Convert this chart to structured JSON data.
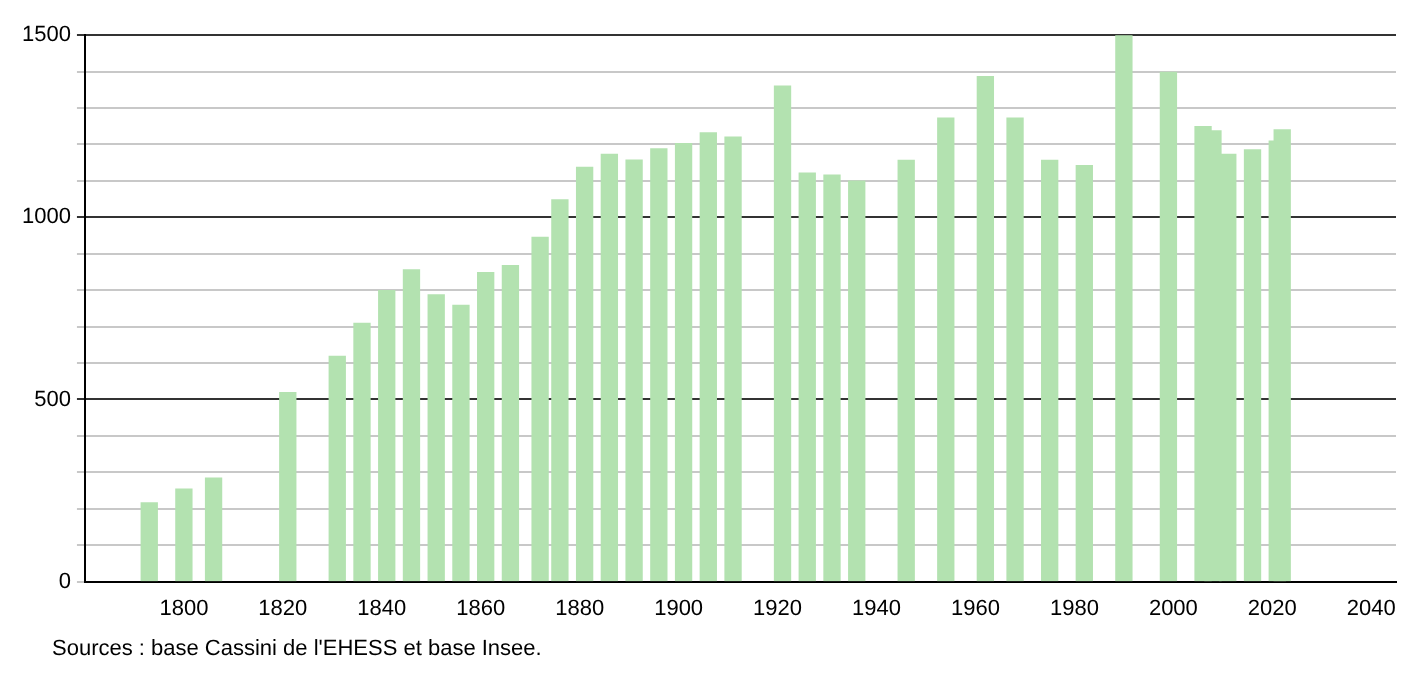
{
  "chart_data": {
    "type": "bar",
    "color": "#b3e2b0",
    "x": [
      1793,
      1800,
      1806,
      1821,
      1831,
      1836,
      1841,
      1846,
      1851,
      1856,
      1861,
      1866,
      1872,
      1876,
      1881,
      1886,
      1891,
      1896,
      1901,
      1906,
      1911,
      1921,
      1926,
      1931,
      1936,
      1946,
      1954,
      1962,
      1968,
      1975,
      1982,
      1990,
      1999,
      2006,
      2008,
      2011,
      2016,
      2021,
      2022
    ],
    "values": [
      216,
      254,
      284,
      519,
      618,
      709,
      799,
      856,
      787,
      758,
      848,
      867,
      945,
      1048,
      1137,
      1173,
      1157,
      1188,
      1202,
      1232,
      1220,
      1360,
      1121,
      1116,
      1099,
      1156,
      1272,
      1386,
      1272,
      1156,
      1142,
      1500,
      1398,
      1249,
      1237,
      1173,
      1185,
      1209,
      1240
    ],
    "xlim": [
      1780,
      2045
    ],
    "xticks": [
      1800,
      1820,
      1840,
      1860,
      1880,
      1900,
      1920,
      1940,
      1960,
      1980,
      2000,
      2020,
      2040
    ],
    "ylim": [
      0,
      1500
    ],
    "yticks": [
      0,
      {
        "value": 100,
        "label": null
      },
      {
        "value": 200,
        "label": null
      },
      {
        "value": 300,
        "label": null
      },
      {
        "value": 400,
        "label": null
      },
      500,
      {
        "value": 600,
        "label": null
      },
      {
        "value": 700,
        "label": null
      },
      {
        "value": 800,
        "label": null
      },
      {
        "value": 900,
        "label": null
      },
      1000,
      {
        "value": 1100,
        "label": null
      },
      {
        "value": 1200,
        "label": null
      },
      {
        "value": 1300,
        "label": null
      },
      {
        "value": 1400,
        "label": null
      },
      1500
    ],
    "grid": "y",
    "legend": false,
    "annotations": [
      "Sources : base Cassini de l'EHESS et base Insee."
    ]
  }
}
